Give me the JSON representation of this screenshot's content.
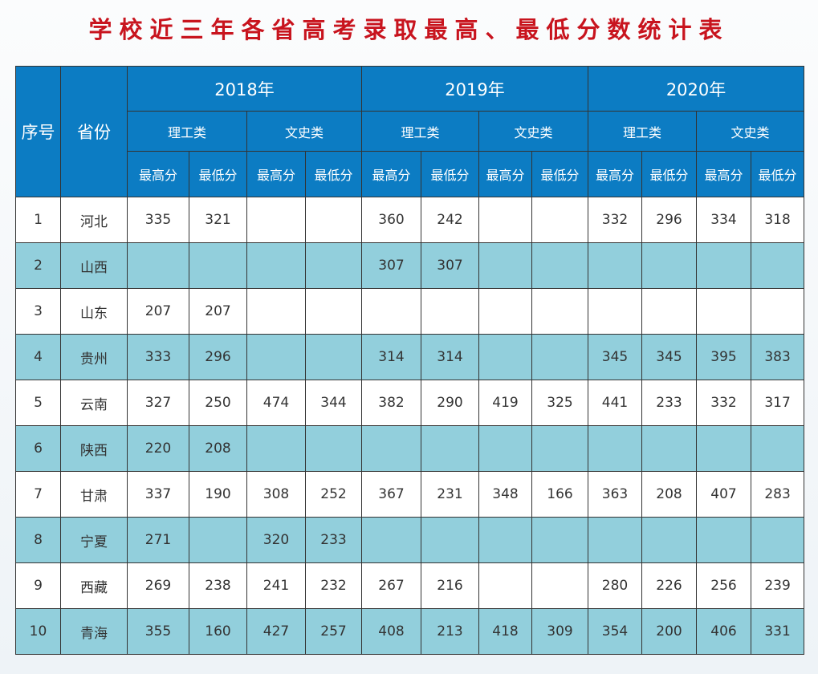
{
  "title": "学校近三年各省高考录取最高、最低分数统计表",
  "colors": {
    "header": "#0c7cc3",
    "alt_row": "#92cfdc",
    "title": "#c8141e"
  },
  "headers": {
    "index": "序号",
    "province": "省份",
    "years": [
      "2018年",
      "2019年",
      "2020年"
    ],
    "categories": [
      "理工类",
      "文史类",
      "理工类",
      "文史类",
      "理工类",
      "文史类"
    ],
    "scores": [
      "最高分",
      "最低分",
      "最高分",
      "最低分",
      "最高分",
      "最低分",
      "最高分",
      "最低分",
      "最高分",
      "最低分",
      "最高分",
      "最低分"
    ]
  },
  "rows": [
    {
      "index": "1",
      "province": "河北",
      "values": [
        "335",
        "321",
        "",
        "",
        "360",
        "242",
        "",
        "",
        "332",
        "296",
        "334",
        "318"
      ]
    },
    {
      "index": "2",
      "province": "山西",
      "values": [
        "",
        "",
        "",
        "",
        "307",
        "307",
        "",
        "",
        "",
        "",
        "",
        ""
      ]
    },
    {
      "index": "3",
      "province": "山东",
      "values": [
        "207",
        "207",
        "",
        "",
        "",
        "",
        "",
        "",
        "",
        "",
        "",
        ""
      ]
    },
    {
      "index": "4",
      "province": "贵州",
      "values": [
        "333",
        "296",
        "",
        "",
        "314",
        "314",
        "",
        "",
        "345",
        "345",
        "395",
        "383"
      ]
    },
    {
      "index": "5",
      "province": "云南",
      "values": [
        "327",
        "250",
        "474",
        "344",
        "382",
        "290",
        "419",
        "325",
        "441",
        "233",
        "332",
        "317"
      ]
    },
    {
      "index": "6",
      "province": "陕西",
      "values": [
        "220",
        "208",
        "",
        "",
        "",
        "",
        "",
        "",
        "",
        "",
        "",
        ""
      ]
    },
    {
      "index": "7",
      "province": "甘肃",
      "values": [
        "337",
        "190",
        "308",
        "252",
        "367",
        "231",
        "348",
        "166",
        "363",
        "208",
        "407",
        "283"
      ]
    },
    {
      "index": "8",
      "province": "宁夏",
      "values": [
        "271",
        "",
        "320",
        "233",
        "",
        "",
        "",
        "",
        "",
        "",
        "",
        ""
      ]
    },
    {
      "index": "9",
      "province": "西藏",
      "values": [
        "269",
        "238",
        "241",
        "232",
        "267",
        "216",
        "",
        "",
        "280",
        "226",
        "256",
        "239"
      ]
    },
    {
      "index": "10",
      "province": "青海",
      "values": [
        "355",
        "160",
        "427",
        "257",
        "408",
        "213",
        "418",
        "309",
        "354",
        "200",
        "406",
        "331"
      ]
    }
  ]
}
